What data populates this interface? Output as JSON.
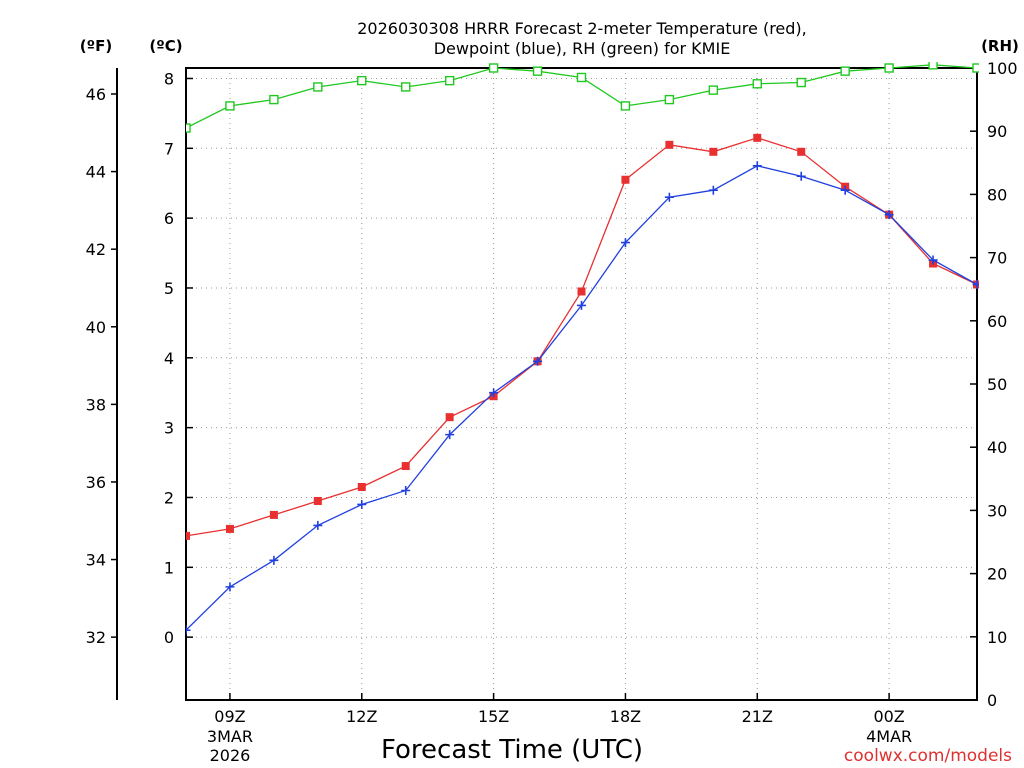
{
  "chart_data": {
    "type": "line",
    "title_line1": "2026030308 HRRR Forecast 2-meter Temperature (red),",
    "title_line2": "Dewpoint (blue), RH (green) for KMIE",
    "xlabel": "Forecast Time (UTC)",
    "watermark": "coolwx.com/models",
    "unit_left_f": "(ºF)",
    "unit_left_c": "(ºC)",
    "unit_right": "(RH)",
    "x_hours": [
      8,
      9,
      10,
      11,
      12,
      13,
      14,
      15,
      16,
      17,
      18,
      19,
      20,
      21,
      22,
      23,
      24,
      25,
      26
    ],
    "xlim": [
      8,
      26
    ],
    "x_ticks": [
      {
        "hour": 9,
        "label": "09Z",
        "date1": "3MAR",
        "date2": "2026"
      },
      {
        "hour": 12,
        "label": "12Z",
        "date1": "",
        "date2": ""
      },
      {
        "hour": 15,
        "label": "15Z",
        "date1": "",
        "date2": ""
      },
      {
        "hour": 18,
        "label": "18Z",
        "date1": "",
        "date2": ""
      },
      {
        "hour": 21,
        "label": "21Z",
        "date1": "",
        "date2": ""
      },
      {
        "hour": 24,
        "label": "00Z",
        "date1": "4MAR",
        "date2": ""
      }
    ],
    "y_c": {
      "min": -0.9,
      "max": 8.15,
      "ticks": [
        0,
        1,
        2,
        3,
        4,
        5,
        6,
        7,
        8
      ]
    },
    "y_f": {
      "ticks": [
        32,
        34,
        36,
        38,
        40,
        42,
        44,
        46
      ]
    },
    "y_rh": {
      "min": 0,
      "max": 100,
      "ticks": [
        0,
        10,
        20,
        30,
        40,
        50,
        60,
        70,
        80,
        90,
        100
      ]
    },
    "series": [
      {
        "name": "Temperature",
        "unit": "C",
        "color": "#e83030",
        "marker": "filled-square",
        "values": [
          1.45,
          1.55,
          1.75,
          1.95,
          2.15,
          2.45,
          3.15,
          3.45,
          3.95,
          4.95,
          6.55,
          7.05,
          6.95,
          7.15,
          6.95,
          6.45,
          6.05,
          5.35,
          5.05
        ]
      },
      {
        "name": "Dewpoint",
        "unit": "C",
        "color": "#2040e0",
        "marker": "plus",
        "values": [
          0.1,
          0.72,
          1.1,
          1.6,
          1.9,
          2.1,
          2.9,
          3.5,
          3.95,
          4.75,
          5.65,
          6.3,
          6.4,
          6.75,
          6.6,
          6.4,
          6.05,
          5.4,
          5.05
        ]
      },
      {
        "name": "RH",
        "unit": "%",
        "color": "#20c820",
        "marker": "open-square",
        "values": [
          90.5,
          94,
          95,
          97,
          98,
          97,
          98,
          100,
          99.5,
          98.5,
          94,
          95,
          96.5,
          97.5,
          97.7,
          99.5,
          100,
          100.5,
          100
        ]
      }
    ]
  }
}
